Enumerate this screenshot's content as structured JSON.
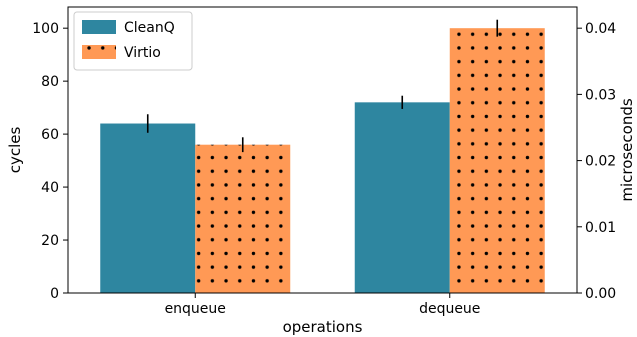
{
  "chart_data": {
    "type": "bar",
    "categories": [
      "enqueue",
      "dequeue"
    ],
    "series": [
      {
        "name": "CleanQ",
        "values": [
          64,
          72
        ],
        "errors": [
          3.5,
          2.5
        ],
        "color": "#2e86a0",
        "pattern": "solid"
      },
      {
        "name": "Virtio",
        "values": [
          56,
          100
        ],
        "errors": [
          2.8,
          3.2
        ],
        "color": "#ff9955",
        "pattern": "dots"
      }
    ],
    "xlabel": "operations",
    "ylabel": "cycles",
    "y2label": "microseconds",
    "ylim": [
      0,
      108
    ],
    "y2lim": [
      0,
      0.0432
    ],
    "yticks": [
      0,
      20,
      40,
      60,
      80,
      100
    ],
    "y2ticks": [
      0.0,
      0.01,
      0.02,
      0.03,
      0.04
    ],
    "y2tick_labels": [
      "0.00",
      "0.01",
      "0.02",
      "0.03",
      "0.04"
    ],
    "legend_position": "top-left",
    "grid": false
  }
}
